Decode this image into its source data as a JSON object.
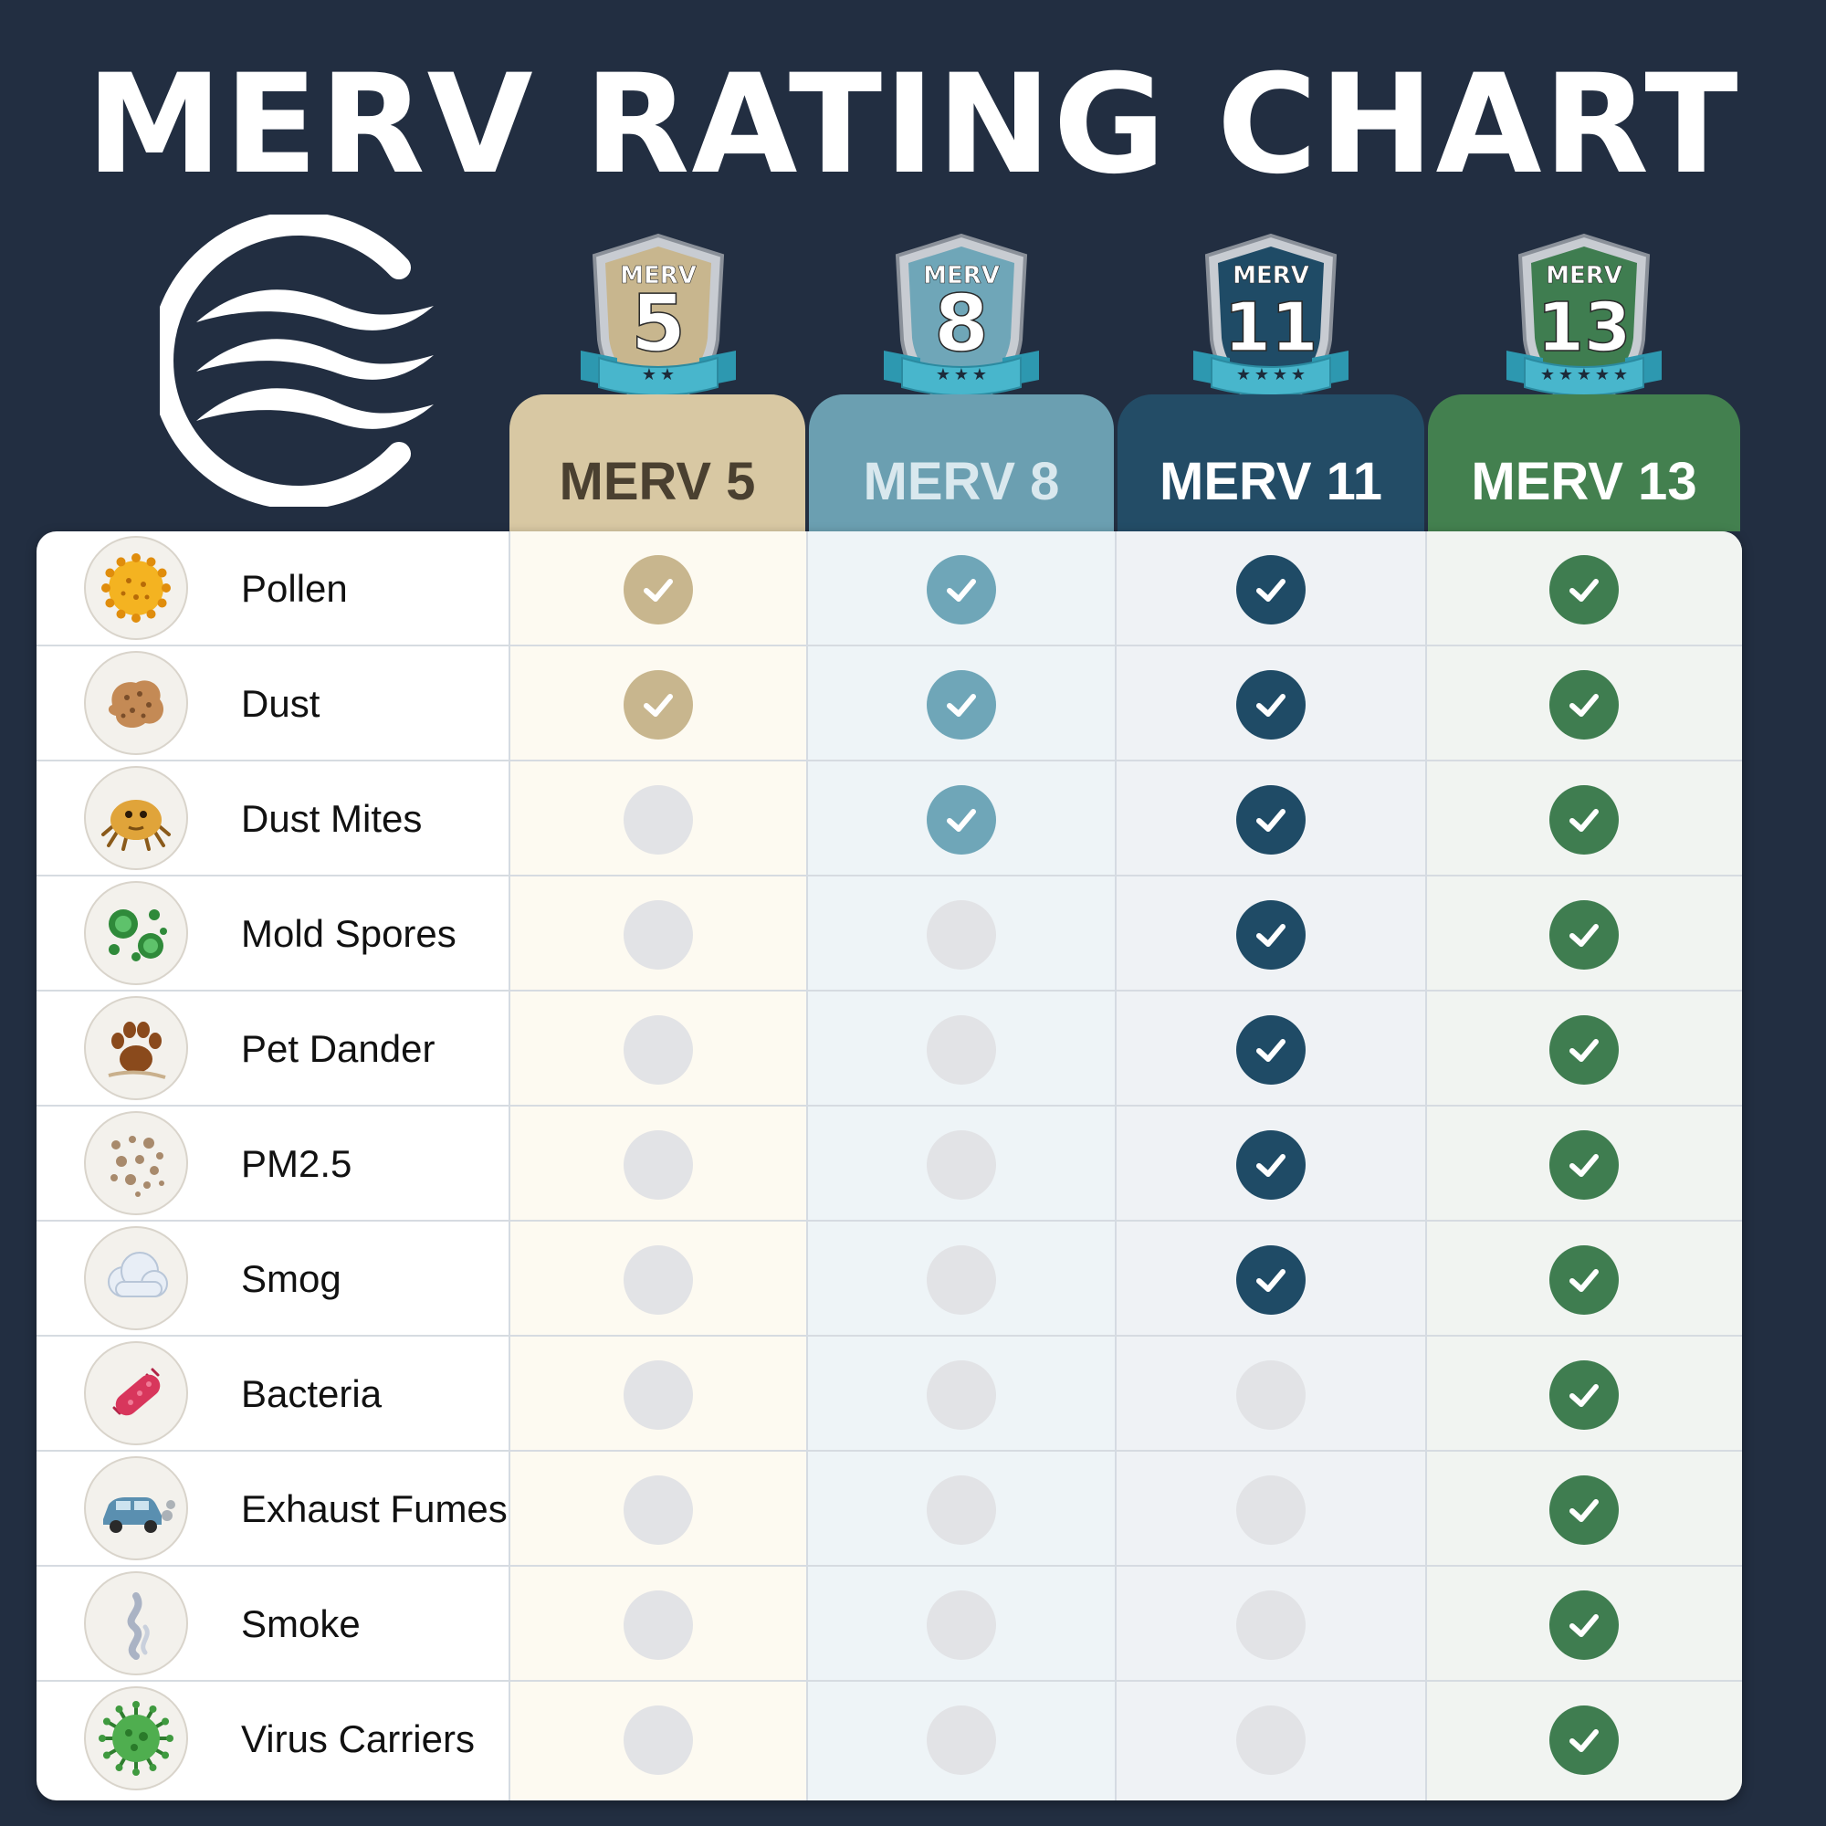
{
  "title": "MERV RATING CHART",
  "logo": {
    "icon": "air-waves-logo-icon",
    "color": "#ffffff"
  },
  "columns": [
    {
      "label": "MERV 5",
      "badge_top": "MERV",
      "badge_number": "5",
      "stars": 2,
      "color": "#c8b68e",
      "header_bg": "#d8c8a3",
      "header_text": "#4a4030",
      "tint": "#fdfaf1"
    },
    {
      "label": "MERV 8",
      "badge_top": "MERV",
      "badge_number": "8",
      "stars": 3,
      "color": "#6fa6b8",
      "header_bg": "#6b9fb1",
      "header_text": "#d9e8ee",
      "tint": "#eef4f7"
    },
    {
      "label": "MERV 11",
      "badge_top": "MERV",
      "badge_number": "11",
      "stars": 4,
      "color": "#1f4b66",
      "header_bg": "#234c66",
      "header_text": "#ffffff",
      "tint": "#eff2f5"
    },
    {
      "label": "MERV 13",
      "badge_top": "MERV",
      "badge_number": "13",
      "stars": 5,
      "color": "#3f7d50",
      "header_bg": "#43804f",
      "header_text": "#ffffff",
      "tint": "#f1f4f1"
    }
  ],
  "rows": [
    {
      "label": "Pollen",
      "icon": "pollen-icon"
    },
    {
      "label": "Dust",
      "icon": "dust-icon"
    },
    {
      "label": "Dust Mites",
      "icon": "dust-mite-icon"
    },
    {
      "label": "Mold Spores",
      "icon": "mold-spores-icon"
    },
    {
      "label": "Pet Dander",
      "icon": "paw-print-icon"
    },
    {
      "label": "PM2.5",
      "icon": "particles-icon"
    },
    {
      "label": "Smog",
      "icon": "cloud-icon"
    },
    {
      "label": "Bacteria",
      "icon": "bacteria-icon"
    },
    {
      "label": "Exhaust Fumes",
      "icon": "car-exhaust-icon"
    },
    {
      "label": "Smoke",
      "icon": "smoke-icon"
    },
    {
      "label": "Virus Carriers",
      "icon": "virus-icon"
    }
  ],
  "chart_data": {
    "type": "table",
    "title": "MERV RATING CHART",
    "columns": [
      "MERV 5",
      "MERV 8",
      "MERV 11",
      "MERV 13"
    ],
    "rows": [
      "Pollen",
      "Dust",
      "Dust Mites",
      "Mold Spores",
      "Pet Dander",
      "PM2.5",
      "Smog",
      "Bacteria",
      "Exhaust Fumes",
      "Smoke",
      "Virus Carriers"
    ],
    "values": [
      [
        true,
        true,
        true,
        true
      ],
      [
        true,
        true,
        true,
        true
      ],
      [
        false,
        true,
        true,
        true
      ],
      [
        false,
        false,
        true,
        true
      ],
      [
        false,
        false,
        true,
        true
      ],
      [
        false,
        false,
        true,
        true
      ],
      [
        false,
        false,
        true,
        true
      ],
      [
        false,
        false,
        false,
        true
      ],
      [
        false,
        false,
        false,
        true
      ],
      [
        false,
        false,
        false,
        true
      ],
      [
        false,
        false,
        false,
        true
      ]
    ]
  }
}
